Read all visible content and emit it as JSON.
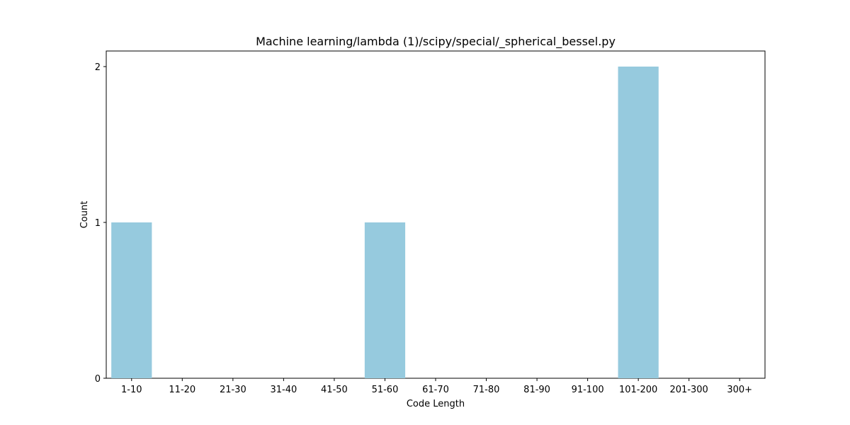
{
  "chart_data": {
    "type": "bar",
    "title": "Machine learning/lambda (1)/scipy/special/_spherical_bessel.py",
    "xlabel": "Code Length",
    "ylabel": "Count",
    "categories": [
      "1-10",
      "11-20",
      "21-30",
      "31-40",
      "41-50",
      "51-60",
      "61-70",
      "71-80",
      "81-90",
      "91-100",
      "101-200",
      "201-300",
      "300+"
    ],
    "values": [
      1,
      0,
      0,
      0,
      0,
      1,
      0,
      0,
      0,
      0,
      2,
      0,
      0
    ],
    "yticks": [
      "0",
      "1",
      "2"
    ],
    "ylim": [
      0,
      2.1
    ],
    "grid": false,
    "bar_color": "#96cade"
  }
}
